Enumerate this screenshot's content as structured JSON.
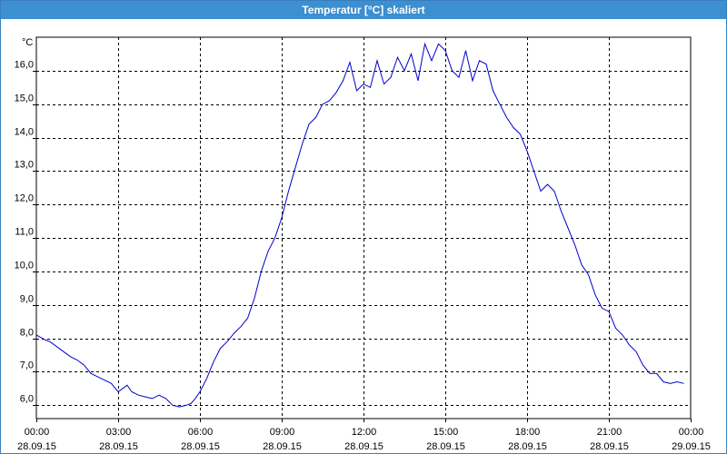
{
  "window": {
    "title": "Temperatur [°C] skaliert"
  },
  "chart_data": {
    "type": "line",
    "title": "Temperatur [°C] skaliert",
    "ylabel": "°C",
    "xlabel": "",
    "ylim": [
      5.6,
      17.0
    ],
    "xlim": [
      0,
      24
    ],
    "grid": true,
    "y_ticks": [
      6.0,
      7.0,
      8.0,
      9.0,
      10.0,
      11.0,
      12.0,
      13.0,
      14.0,
      15.0,
      16.0
    ],
    "y_tick_labels": [
      "6,0",
      "7,0",
      "8,0",
      "9,0",
      "10,0",
      "11,0",
      "12,0",
      "13,0",
      "14,0",
      "15,0",
      "16,0"
    ],
    "x_ticks": [
      {
        "hours": 0,
        "time": "00:00",
        "date": "28.09.15"
      },
      {
        "hours": 3,
        "time": "03:00",
        "date": "28.09.15"
      },
      {
        "hours": 6,
        "time": "06:00",
        "date": "28.09.15"
      },
      {
        "hours": 9,
        "time": "09:00",
        "date": "28.09.15"
      },
      {
        "hours": 12,
        "time": "12:00",
        "date": "28.09.15"
      },
      {
        "hours": 15,
        "time": "15:00",
        "date": "28.09.15"
      },
      {
        "hours": 18,
        "time": "18:00",
        "date": "28.09.15"
      },
      {
        "hours": 21,
        "time": "21:00",
        "date": "28.09.15"
      },
      {
        "hours": 24,
        "time": "00:00",
        "date": "29.09.15"
      }
    ],
    "series": [
      {
        "color": "#0000cc",
        "x": [
          0.0,
          0.33,
          0.5,
          0.75,
          1.0,
          1.25,
          1.5,
          1.75,
          2.0,
          2.25,
          2.5,
          2.75,
          3.0,
          3.17,
          3.33,
          3.5,
          3.75,
          4.0,
          4.25,
          4.5,
          4.75,
          5.0,
          5.25,
          5.5,
          5.67,
          5.83,
          6.0,
          6.25,
          6.5,
          6.75,
          7.0,
          7.25,
          7.5,
          7.75,
          8.0,
          8.25,
          8.5,
          8.75,
          9.0,
          9.25,
          9.5,
          9.75,
          10.0,
          10.25,
          10.5,
          10.75,
          11.0,
          11.25,
          11.5,
          11.75,
          12.0,
          12.25,
          12.5,
          12.75,
          13.0,
          13.25,
          13.5,
          13.75,
          14.0,
          14.25,
          14.5,
          14.75,
          15.0,
          15.25,
          15.5,
          15.75,
          16.0,
          16.25,
          16.5,
          16.75,
          17.0,
          17.25,
          17.5,
          17.75,
          18.0,
          18.25,
          18.5,
          18.75,
          19.0,
          19.25,
          19.5,
          19.75,
          20.0,
          20.25,
          20.5,
          20.75,
          21.0,
          21.25,
          21.5,
          21.75,
          22.0,
          22.25,
          22.5,
          22.75,
          23.0,
          23.25,
          23.5,
          23.75
        ],
        "y": [
          8.1,
          7.95,
          7.9,
          7.75,
          7.6,
          7.45,
          7.35,
          7.2,
          6.95,
          6.85,
          6.75,
          6.65,
          6.4,
          6.5,
          6.6,
          6.4,
          6.3,
          6.25,
          6.2,
          6.3,
          6.2,
          6.0,
          5.95,
          6.0,
          6.05,
          6.2,
          6.4,
          6.8,
          7.3,
          7.7,
          7.9,
          8.15,
          8.35,
          8.6,
          9.2,
          10.0,
          10.6,
          11.0,
          11.6,
          12.4,
          13.1,
          13.8,
          14.4,
          14.6,
          15.0,
          15.1,
          15.35,
          15.7,
          16.25,
          15.4,
          15.6,
          15.5,
          16.3,
          15.6,
          15.8,
          16.4,
          16.0,
          16.5,
          15.7,
          16.8,
          16.3,
          16.8,
          16.6,
          16.0,
          15.8,
          16.6,
          15.7,
          16.3,
          16.2,
          15.4,
          15.0,
          14.6,
          14.3,
          14.1,
          13.6,
          13.0,
          12.4,
          12.6,
          12.4,
          11.8,
          11.3,
          10.8,
          10.2,
          9.9,
          9.3,
          8.9,
          8.8,
          8.3,
          8.1,
          7.8,
          7.6,
          7.2,
          6.95,
          6.95,
          6.7,
          6.65,
          6.7,
          6.65
        ]
      }
    ]
  }
}
